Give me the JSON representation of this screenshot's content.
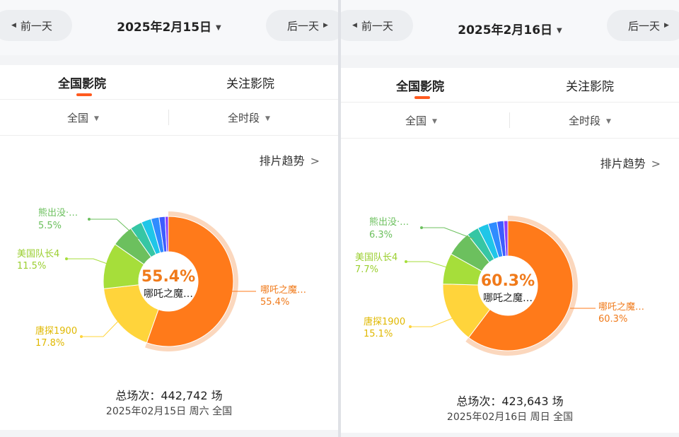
{
  "nav": {
    "prev_label": "前一天",
    "next_label": "后一天"
  },
  "tabs": [
    "全国影院",
    "关注影院"
  ],
  "filters": {
    "region": "全国",
    "period": "全时段"
  },
  "trend_link": "排片趋势",
  "colors": {
    "accent": "#ff5a1f",
    "nezha": "#ff7a1a",
    "tang": "#ffd43b",
    "captain": "#a6de3a",
    "bear": "#6cc05e",
    "others": [
      "#36c6a4",
      "#1fc6e8",
      "#2f8cff",
      "#3d5cff",
      "#8a3dff"
    ]
  },
  "panels": [
    {
      "date": "2025年2月15日",
      "center": {
        "pct": "55.4%",
        "name": "哪吒之魔…"
      },
      "labels": [
        {
          "name": "熊出没·…",
          "pct": "5.5%"
        },
        {
          "name": "美国队长4",
          "pct": "11.5%"
        },
        {
          "name": "唐探1900",
          "pct": "17.8%"
        },
        {
          "name": "哪吒之魔…",
          "pct": "55.4%"
        }
      ],
      "total": "总场次：442,742 场",
      "subdate": "2025年02月15日 周六 全国"
    },
    {
      "date": "2025年2月16日",
      "center": {
        "pct": "60.3%",
        "name": "哪吒之魔…"
      },
      "labels": [
        {
          "name": "熊出没·…",
          "pct": "6.3%"
        },
        {
          "name": "美国队长4",
          "pct": "7.7%"
        },
        {
          "name": "唐探1900",
          "pct": "15.1%"
        },
        {
          "name": "哪吒之魔…",
          "pct": "60.3%"
        }
      ],
      "total": "总场次：423,643 场",
      "subdate": "2025年02月16日 周日 全国"
    }
  ],
  "chart_data": [
    {
      "type": "pie",
      "series": [
        {
          "name": "哪吒之魔…",
          "value": 55.4
        },
        {
          "name": "唐探1900",
          "value": 17.8
        },
        {
          "name": "美国队长4",
          "value": 11.5
        },
        {
          "name": "熊出没·…",
          "value": 5.5
        },
        {
          "value": 3.0
        },
        {
          "value": 2.5
        },
        {
          "value": 2.0
        },
        {
          "value": 1.5
        },
        {
          "value": 0.8
        }
      ]
    },
    {
      "type": "pie",
      "series": [
        {
          "name": "哪吒之魔…",
          "value": 60.3
        },
        {
          "name": "唐探1900",
          "value": 15.1
        },
        {
          "name": "美国队长4",
          "value": 7.7
        },
        {
          "name": "熊出没·…",
          "value": 6.3
        },
        {
          "value": 3.0
        },
        {
          "value": 2.7
        },
        {
          "value": 2.2
        },
        {
          "value": 1.7
        },
        {
          "value": 1.0
        }
      ]
    }
  ]
}
